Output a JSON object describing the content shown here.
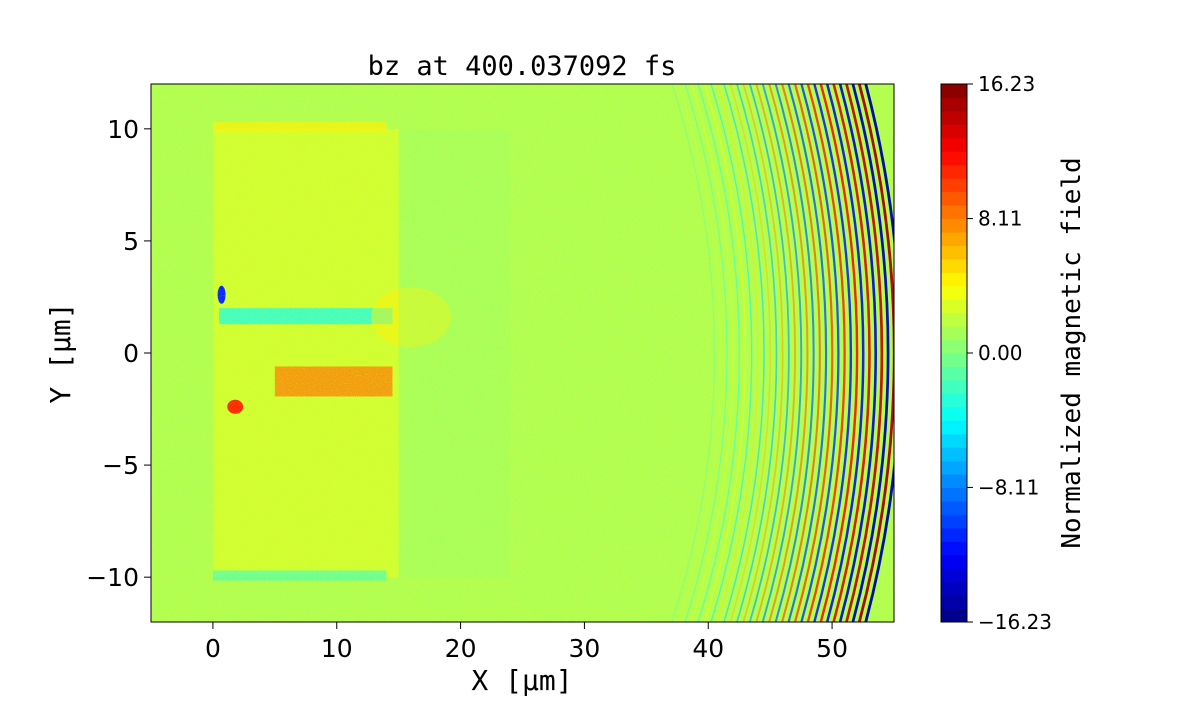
{
  "chart_data": {
    "type": "heatmap",
    "title": "bz at 400.037092 fs",
    "xlabel": "X [μm]",
    "ylabel": "Y [μm]",
    "xlim": [
      -5,
      55
    ],
    "ylim": [
      -12,
      12
    ],
    "x_ticks": [
      {
        "value": 0,
        "label": "0"
      },
      {
        "value": 10,
        "label": "10"
      },
      {
        "value": 20,
        "label": "20"
      },
      {
        "value": 30,
        "label": "30"
      },
      {
        "value": 40,
        "label": "40"
      },
      {
        "value": 50,
        "label": "50"
      }
    ],
    "y_ticks": [
      {
        "value": 10,
        "label": "10"
      },
      {
        "value": 5,
        "label": "5"
      },
      {
        "value": 0,
        "label": "0"
      },
      {
        "value": -5,
        "label": "−5"
      },
      {
        "value": -10,
        "label": "−10"
      }
    ],
    "colorbar": {
      "label": "Normalized magnetic field",
      "range": [
        -16.23,
        16.23
      ],
      "ticks": [
        {
          "value": 16.23,
          "label": "16.23"
        },
        {
          "value": 8.11,
          "label": "8.11"
        },
        {
          "value": 0.0,
          "label": "0.00"
        },
        {
          "value": -8.11,
          "label": "−8.11"
        },
        {
          "value": -16.23,
          "label": "−16.23"
        }
      ],
      "colormap": "jet",
      "levels": 40
    },
    "features": {
      "target_region_x": [
        0,
        15
      ],
      "target_region_y": [
        -10,
        10
      ],
      "wavefront_x_start": 40,
      "wavefront_x_end": 55,
      "background_value": 1.5
    }
  },
  "colors": {
    "background": "#ffffff",
    "axis": "#000000"
  }
}
